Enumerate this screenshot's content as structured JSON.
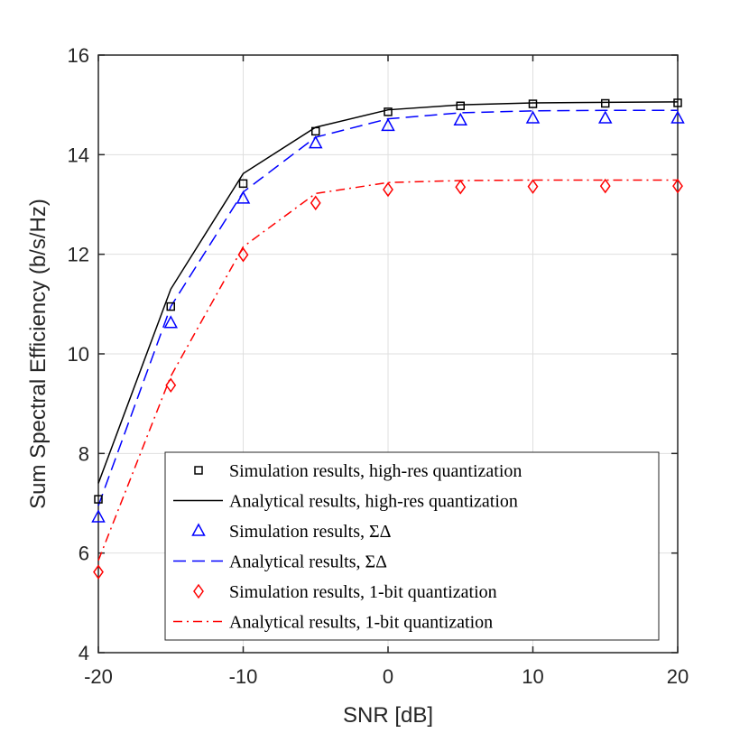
{
  "chart_data": {
    "type": "line",
    "title": "",
    "xlabel": "SNR [dB]",
    "ylabel": "Sum Spectral Efficiency (b/s/Hz)",
    "xlim": [
      -20,
      20
    ],
    "ylim": [
      4,
      16
    ],
    "grid": true,
    "xticks": [
      -20,
      -10,
      0,
      10,
      20
    ],
    "yticks": [
      4,
      6,
      8,
      10,
      12,
      14,
      16
    ],
    "legend_position": "bottom-right",
    "colors": {
      "black": "#000000",
      "blue": "#0000ff",
      "red": "#ff0000"
    },
    "series": [
      {
        "name": "Simulation results, high-res quantization",
        "style": "square-marker",
        "color": "#000000",
        "x": [
          -20,
          -15,
          -10,
          -5,
          0,
          5,
          10,
          15,
          20
        ],
        "y": [
          7.08,
          10.95,
          13.42,
          14.47,
          14.86,
          14.98,
          15.02,
          15.03,
          15.04
        ]
      },
      {
        "name": "Analytical results, high-res quantization",
        "style": "solid",
        "color": "#000000",
        "x": [
          -20,
          -15,
          -10,
          -5,
          0,
          5,
          10,
          15,
          20
        ],
        "y": [
          7.4,
          11.3,
          13.62,
          14.55,
          14.9,
          15.0,
          15.04,
          15.05,
          15.06
        ]
      },
      {
        "name": "Simulation results, ΣΔ",
        "style": "triangle-marker",
        "color": "#0000ff",
        "x": [
          -20,
          -15,
          -10,
          -5,
          0,
          5,
          10,
          15,
          20
        ],
        "y": [
          6.72,
          10.62,
          13.12,
          14.23,
          14.58,
          14.69,
          14.73,
          14.73,
          14.73
        ]
      },
      {
        "name": "Analytical results, ΣΔ",
        "style": "dashed",
        "color": "#0000ff",
        "x": [
          -20,
          -15,
          -10,
          -5,
          0,
          5,
          10,
          15,
          20
        ],
        "y": [
          6.95,
          10.95,
          13.25,
          14.35,
          14.72,
          14.84,
          14.88,
          14.89,
          14.89
        ]
      },
      {
        "name": "Simulation results, 1-bit quantization",
        "style": "diamond-marker",
        "color": "#ff0000",
        "x": [
          -20,
          -15,
          -10,
          -5,
          0,
          5,
          10,
          15,
          20
        ],
        "y": [
          5.62,
          9.37,
          11.99,
          13.03,
          13.3,
          13.35,
          13.36,
          13.37,
          13.37
        ]
      },
      {
        "name": "Analytical results, 1-bit quantization",
        "style": "dashdot",
        "color": "#ff0000",
        "x": [
          -20,
          -15,
          -10,
          -5,
          0,
          5,
          10,
          15,
          20
        ],
        "y": [
          5.85,
          9.55,
          12.15,
          13.22,
          13.44,
          13.48,
          13.49,
          13.49,
          13.49
        ]
      }
    ]
  }
}
